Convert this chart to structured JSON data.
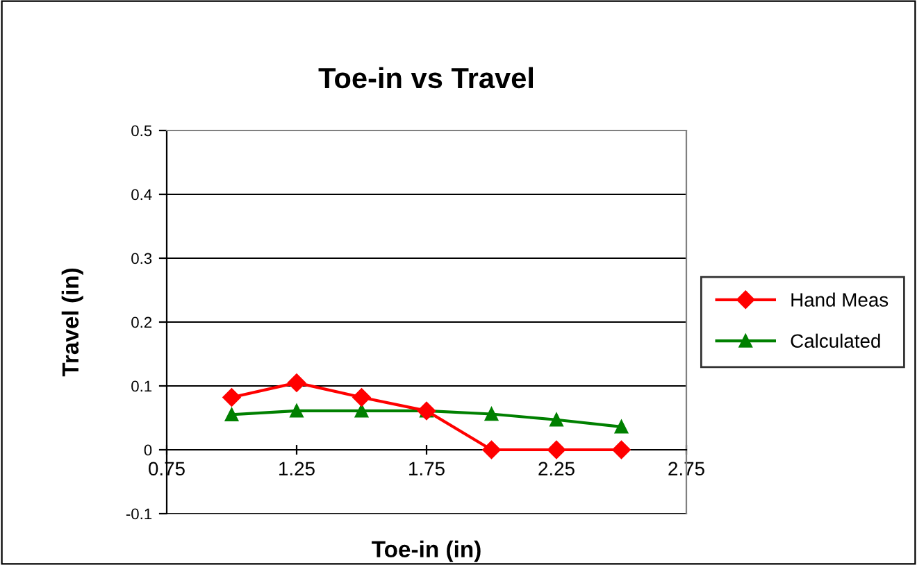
{
  "chart_data": {
    "type": "line",
    "title": "Toe-in vs Travel",
    "xlabel": "Toe-in (in)",
    "ylabel": "Travel (in)",
    "x": [
      1.0,
      1.25,
      1.5,
      1.75,
      2.0,
      2.25,
      2.5
    ],
    "series": [
      {
        "name": "Hand Meas",
        "color": "#ff0000",
        "marker": "diamond",
        "values": [
          0.082,
          0.105,
          0.082,
          0.061,
          0.0,
          0.0,
          0.0
        ]
      },
      {
        "name": "Calculated",
        "color": "#008000",
        "marker": "triangle",
        "values": [
          0.055,
          0.061,
          0.061,
          0.061,
          0.056,
          0.047,
          0.036
        ]
      }
    ],
    "xlim": [
      0.75,
      2.75
    ],
    "xticks": [
      0.75,
      1.25,
      1.75,
      2.25,
      2.75
    ],
    "ylim": [
      -0.1,
      0.5
    ],
    "yticks": [
      -0.1,
      0,
      0.1,
      0.2,
      0.3,
      0.4,
      0.5
    ],
    "grid": "y",
    "legend": "right",
    "line_style": "solid"
  }
}
